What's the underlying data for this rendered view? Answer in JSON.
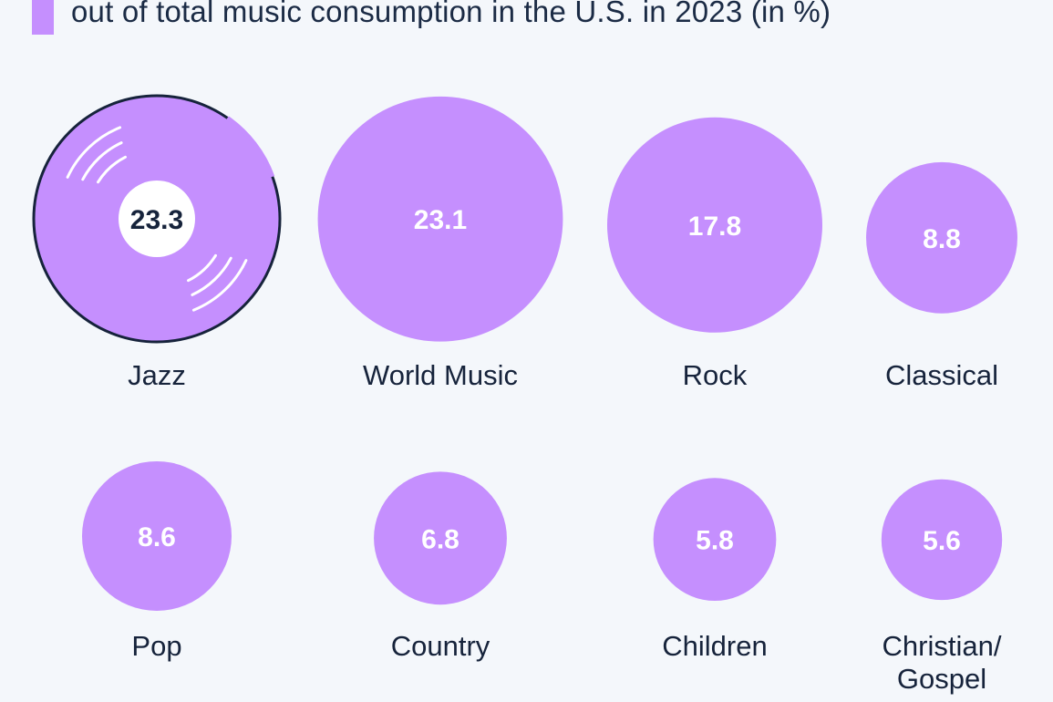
{
  "header": {
    "subtitle": "out of total music consumption in the U.S. in 2023 (in %)"
  },
  "colors": {
    "bubble": "#c58ffe",
    "text": "#16233b",
    "background": "#f4f7fb"
  },
  "chart_data": {
    "type": "bubble",
    "unit": "%",
    "subtitle": "out of total music consumption in the U.S. in 2023 (in %)",
    "categories": [
      "Jazz",
      "World Music",
      "Rock",
      "Classical",
      "Pop",
      "Country",
      "Children",
      "Christian/ Gospel"
    ],
    "label_lines": [
      [
        "Jazz"
      ],
      [
        "World Music"
      ],
      [
        "Rock"
      ],
      [
        "Classical"
      ],
      [
        "Pop"
      ],
      [
        "Country"
      ],
      [
        "Children"
      ],
      [
        "Christian/",
        "Gospel"
      ]
    ],
    "values": [
      23.3,
      23.1,
      17.8,
      8.8,
      8.6,
      6.8,
      5.8,
      5.6
    ],
    "value_labels": [
      "23.3",
      "23.1",
      "17.8",
      "8.8",
      "8.6",
      "6.8",
      "5.8",
      "5.6"
    ],
    "highlight": "Jazz"
  }
}
